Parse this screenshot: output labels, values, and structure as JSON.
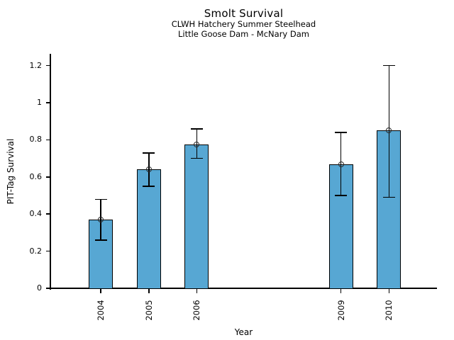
{
  "page": {
    "background": "#ffffff"
  },
  "chart_data": {
    "type": "bar",
    "title": "Smolt Survival",
    "subtitle1": "CLWH Hatchery Summer Steelhead",
    "subtitle2": "Little Goose Dam - McNary Dam",
    "xlabel": "Year",
    "ylabel": "PIT-Tag Survival",
    "categories": [
      "2004",
      "2005",
      "2006",
      "2009",
      "2010"
    ],
    "x_values": [
      2004,
      2005,
      2006,
      2009,
      2010
    ],
    "values": [
      0.37,
      0.64,
      0.775,
      0.67,
      0.85
    ],
    "error_low": [
      0.26,
      0.55,
      0.7,
      0.5,
      0.49
    ],
    "error_high": [
      0.48,
      0.73,
      0.86,
      0.84,
      1.2
    ],
    "yticks": [
      0,
      0.2,
      0.4,
      0.6,
      0.8,
      1,
      1.2
    ],
    "ytick_labels": [
      "0",
      "0.2",
      "0.4",
      "0.6",
      "0.8",
      "1",
      "1.2"
    ],
    "ylim": [
      0,
      1.26
    ],
    "x_range": [
      2002.95,
      2011.0
    ],
    "grid": false,
    "legend": null,
    "bar_color": "#57A7D3",
    "bar_edge_color": "#000000",
    "error_color": "#000000",
    "marker": "open-circle"
  }
}
